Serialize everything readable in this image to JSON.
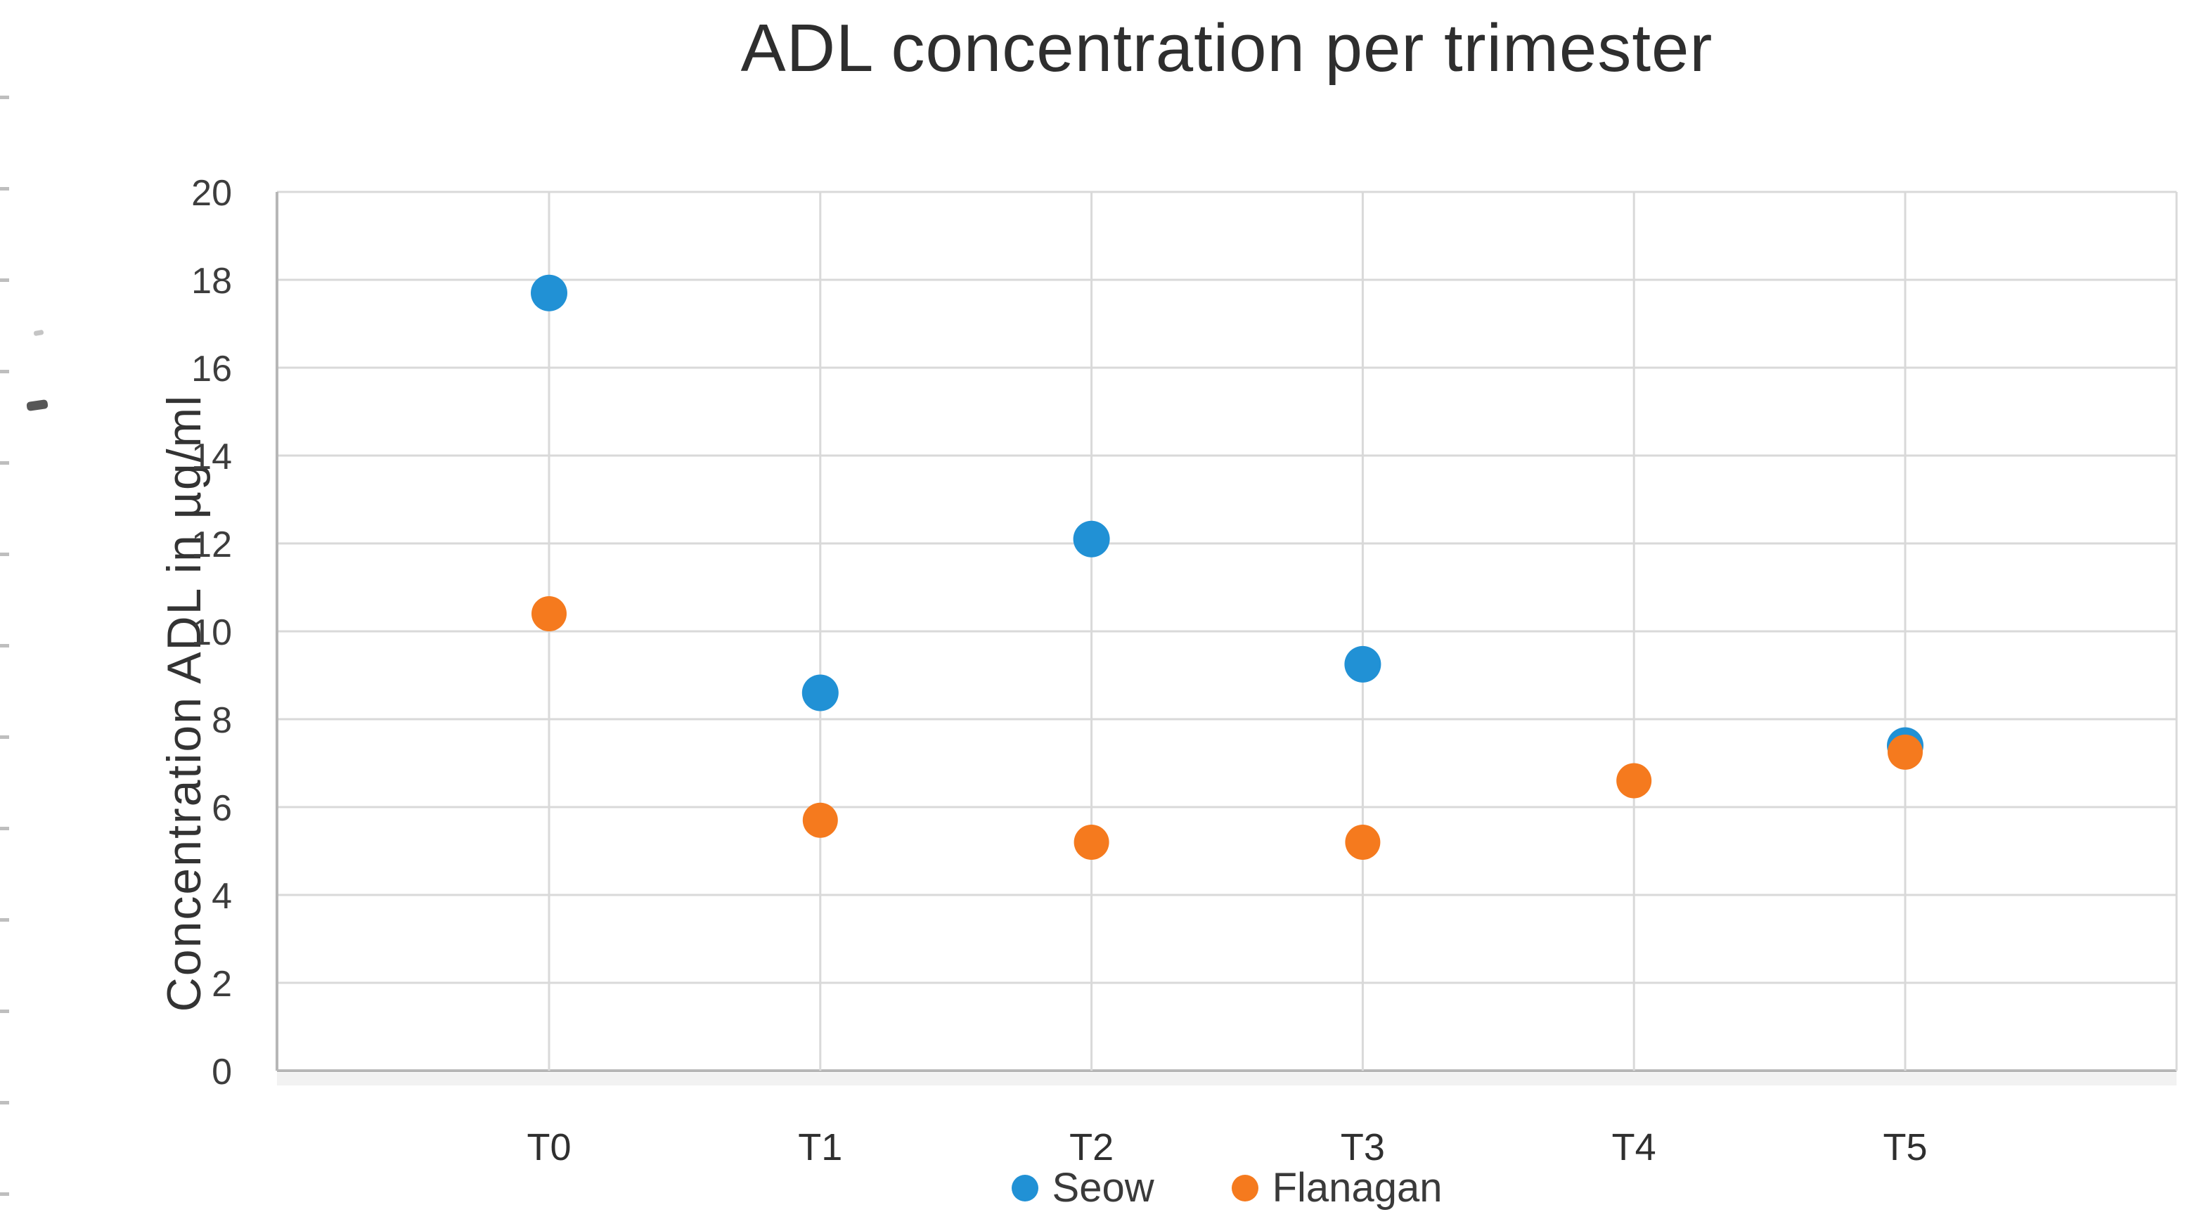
{
  "chart_data": {
    "type": "scatter",
    "title": "ADL concentration per trimester",
    "ylabel": "Concentration ADL in µg/ml",
    "xlabel": "",
    "categories": [
      "T0",
      "T1",
      "T2",
      "T3",
      "T4",
      "T5"
    ],
    "series": [
      {
        "name": "Seow",
        "color": "#2191D5",
        "values": [
          17.7,
          8.6,
          12.1,
          9.25,
          null,
          7.4
        ]
      },
      {
        "name": "Flanagan",
        "color": "#F57A1E",
        "values": [
          10.4,
          5.7,
          5.2,
          5.2,
          6.6,
          7.25
        ]
      }
    ],
    "ylim": [
      0,
      20
    ],
    "ytick_step": 2,
    "ytick_labels": [
      "0",
      "2",
      "4",
      "6",
      "8",
      "10",
      "12",
      "14",
      "16",
      "18",
      "20"
    ],
    "grid": true,
    "legend_position": "bottom",
    "gridline_color": "#D9D9D9",
    "axis_color": "#B7B7B7",
    "tick_text_color": "#3d3d3d"
  }
}
